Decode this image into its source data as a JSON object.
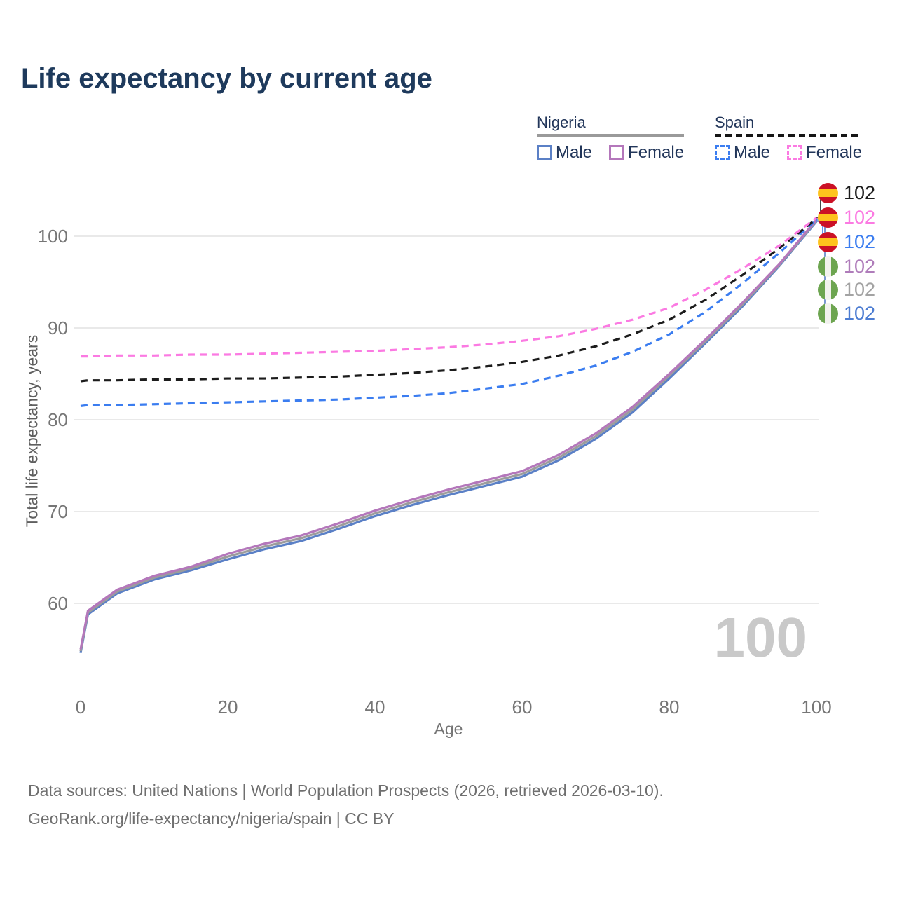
{
  "title": "Life expectancy by current age",
  "legend": {
    "nigeria": {
      "label": "Nigeria",
      "male": "Male",
      "female": "Female"
    },
    "spain": {
      "label": "Spain",
      "male": "Male",
      "female": "Female"
    }
  },
  "age_counter": "100",
  "end_labels": [
    {
      "flag": "spain",
      "series": "Spain Both sexes",
      "text": "102",
      "color": "#1c1c1c"
    },
    {
      "flag": "spain",
      "series": "Spain Female",
      "text": "102",
      "color": "#fb7ae2"
    },
    {
      "flag": "spain",
      "series": "Spain Male",
      "text": "102",
      "color": "#3b7df0"
    },
    {
      "flag": "nigeria",
      "series": "Nigeria Female",
      "text": "102",
      "color": "#af7cba"
    },
    {
      "flag": "nigeria",
      "series": "Nigeria Both sexes",
      "text": "102",
      "color": "#a3a3a3"
    },
    {
      "flag": "nigeria",
      "series": "Nigeria Male",
      "text": "102",
      "color": "#4d7dd2"
    }
  ],
  "footer": {
    "line1": "Data sources: United Nations | World Population Prospects (2026, retrieved 2026-03-10).",
    "line2": "GeoRank.org/life-expectancy/nigeria/spain | CC BY"
  },
  "colors": {
    "nigeria_male": "#5b80c6",
    "nigeria_both": "#9c9c9c",
    "nigeria_female": "#b477bb",
    "spain_male": "#3b7df0",
    "spain_both": "#1c1c1c",
    "spain_female": "#fb7ae2",
    "grid": "#e9e9e9",
    "tick_text": "#767676",
    "counter_text": "#c9c9c9",
    "title_text": "#1e3a5c",
    "flag_spain_red": "#cb1126",
    "flag_spain_yellow": "#fec31d",
    "flag_nigeria_green": "#6da550",
    "flag_nigeria_white": "#f2f2ee"
  },
  "chart_data": {
    "type": "line",
    "title": "Life expectancy by current age",
    "xlabel": "Age",
    "ylabel": "Total life expectancy, years",
    "xlim": [
      0,
      100
    ],
    "ylim": [
      54,
      104
    ],
    "xticks": [
      0,
      20,
      40,
      60,
      80,
      100
    ],
    "yticks": [
      60,
      70,
      80,
      90,
      100
    ],
    "grid": true,
    "legend_position": "top-right",
    "current_age_indicator": 100,
    "end_value_all_series": 102,
    "x": [
      0,
      1,
      5,
      10,
      15,
      20,
      25,
      30,
      35,
      40,
      45,
      50,
      55,
      60,
      65,
      70,
      75,
      80,
      85,
      90,
      95,
      100
    ],
    "series": [
      {
        "name": "Nigeria Male",
        "country": "Nigeria",
        "sex": "male",
        "style": "solid",
        "color": "#5b80c6",
        "values": [
          54.6,
          58.8,
          61.1,
          62.6,
          63.6,
          64.8,
          65.9,
          66.8,
          68.1,
          69.5,
          70.7,
          71.8,
          72.8,
          73.8,
          75.6,
          77.9,
          80.8,
          84.5,
          88.4,
          92.4,
          96.8,
          101.6
        ]
      },
      {
        "name": "Nigeria Both sexes",
        "country": "Nigeria",
        "sex": "both",
        "style": "solid",
        "color": "#9c9c9c",
        "values": [
          54.8,
          59.0,
          61.3,
          62.8,
          63.8,
          65.1,
          66.2,
          67.1,
          68.4,
          69.8,
          71.0,
          72.1,
          73.1,
          74.1,
          75.9,
          78.2,
          81.1,
          84.8,
          88.6,
          92.6,
          96.9,
          101.7
        ]
      },
      {
        "name": "Nigeria Female",
        "country": "Nigeria",
        "sex": "female",
        "style": "solid",
        "color": "#b477bb",
        "values": [
          55.0,
          59.2,
          61.5,
          63.0,
          64.0,
          65.4,
          66.5,
          67.4,
          68.7,
          70.1,
          71.3,
          72.4,
          73.4,
          74.4,
          76.2,
          78.5,
          81.4,
          85.0,
          88.8,
          92.8,
          97.0,
          101.8
        ]
      },
      {
        "name": "Spain Male",
        "country": "Spain",
        "sex": "male",
        "style": "dashed",
        "color": "#3b7df0",
        "values": [
          81.5,
          81.6,
          81.6,
          81.7,
          81.8,
          81.9,
          82.0,
          82.1,
          82.2,
          82.4,
          82.6,
          82.9,
          83.4,
          83.9,
          84.8,
          85.9,
          87.4,
          89.3,
          91.8,
          94.9,
          98.2,
          101.8
        ]
      },
      {
        "name": "Spain Both sexes",
        "country": "Spain",
        "sex": "both",
        "style": "dashed",
        "color": "#1c1c1c",
        "values": [
          84.2,
          84.3,
          84.3,
          84.4,
          84.4,
          84.5,
          84.5,
          84.6,
          84.7,
          84.9,
          85.1,
          85.4,
          85.8,
          86.3,
          87.0,
          88.0,
          89.3,
          90.9,
          93.1,
          95.8,
          98.7,
          101.9
        ]
      },
      {
        "name": "Spain Female",
        "country": "Spain",
        "sex": "female",
        "style": "dashed",
        "color": "#fb7ae2",
        "values": [
          86.9,
          86.9,
          87.0,
          87.0,
          87.1,
          87.1,
          87.2,
          87.3,
          87.4,
          87.5,
          87.7,
          87.9,
          88.2,
          88.6,
          89.1,
          89.9,
          90.9,
          92.2,
          94.2,
          96.5,
          99.0,
          102.0
        ]
      }
    ]
  }
}
